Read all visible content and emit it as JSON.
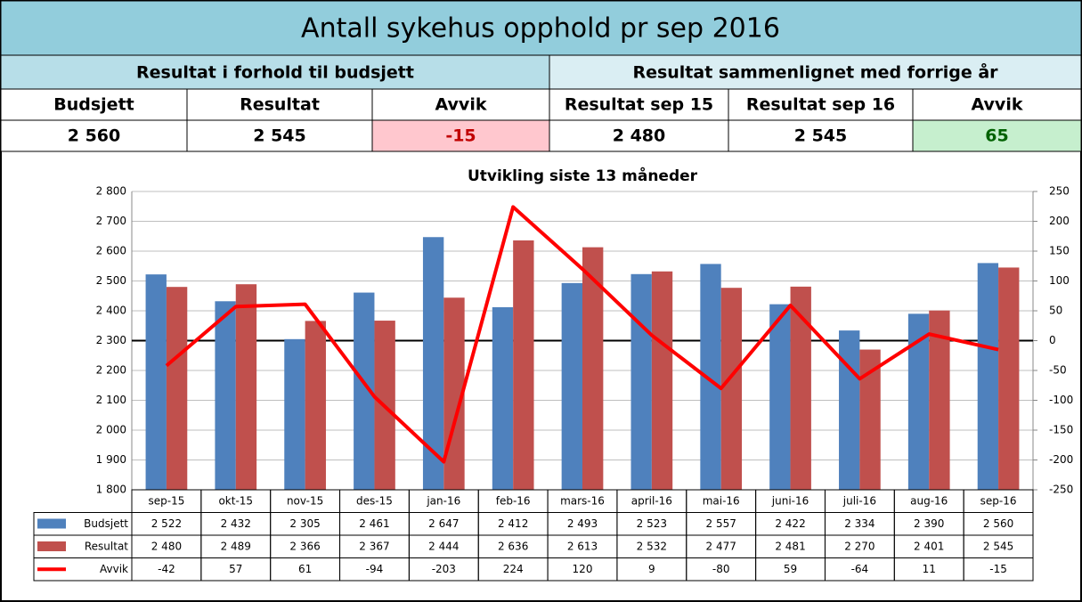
{
  "header": {
    "title": "Antall sykehus opphold pr sep 2016",
    "groups": [
      "Resultat i forhold til budsjett",
      "Resultat sammenlignet med forrige år"
    ],
    "columns": [
      "Budsjett",
      "Resultat",
      "Avvik",
      "Resultat sep 15",
      "Resultat sep 16",
      "Avvik"
    ],
    "values": [
      "2 560",
      "2 545",
      "-15",
      "2 480",
      "2 545",
      "65"
    ]
  },
  "chart_data": {
    "type": "bar",
    "title": "Utvikling siste 13 måneder",
    "categories": [
      "sep-15",
      "okt-15",
      "nov-15",
      "des-15",
      "jan-16",
      "feb-16",
      "mars-16",
      "april-16",
      "mai-16",
      "juni-16",
      "juli-16",
      "aug-16",
      "sep-16"
    ],
    "series": [
      {
        "name": "Budsjett",
        "color": "#4f81bd",
        "values": [
          2522,
          2432,
          2305,
          2461,
          2647,
          2412,
          2493,
          2523,
          2557,
          2422,
          2334,
          2390,
          2560
        ],
        "value_labels": [
          "2 522",
          "2 432",
          "2 305",
          "2 461",
          "2 647",
          "2 412",
          "2 493",
          "2 523",
          "2 557",
          "2 422",
          "2 334",
          "2 390",
          "2 560"
        ]
      },
      {
        "name": "Resultat",
        "color": "#c0504d",
        "values": [
          2480,
          2489,
          2366,
          2367,
          2444,
          2636,
          2613,
          2532,
          2477,
          2481,
          2270,
          2401,
          2545
        ],
        "value_labels": [
          "2 480",
          "2 489",
          "2 366",
          "2 367",
          "2 444",
          "2 636",
          "2 613",
          "2 532",
          "2 477",
          "2 481",
          "2 270",
          "2 401",
          "2 545"
        ]
      },
      {
        "name": "Avvik",
        "color": "#ff0000",
        "type": "line",
        "axis": "y2",
        "values": [
          -42,
          57,
          61,
          -94,
          -203,
          224,
          120,
          9,
          -80,
          59,
          -64,
          11,
          -15
        ]
      }
    ],
    "ylim": [
      1800,
      2800
    ],
    "yticks": [
      {
        "value": 1800,
        "label": "1 800"
      },
      {
        "value": 1900,
        "label": "1 900"
      },
      {
        "value": 2000,
        "label": "2 000"
      },
      {
        "value": 2100,
        "label": "2 100"
      },
      {
        "value": 2200,
        "label": "2 200"
      },
      {
        "value": 2300,
        "label": "2 300"
      },
      {
        "value": 2400,
        "label": "2 400"
      },
      {
        "value": 2500,
        "label": "2 500"
      },
      {
        "value": 2600,
        "label": "2 600"
      },
      {
        "value": 2700,
        "label": "2 700"
      },
      {
        "value": 2800,
        "label": "2 800"
      }
    ],
    "y2lim": [
      -250,
      250
    ],
    "y2ticks": [
      -250,
      -200,
      -150,
      -100,
      -50,
      0,
      50,
      100,
      150,
      200,
      250
    ],
    "grid": true
  }
}
